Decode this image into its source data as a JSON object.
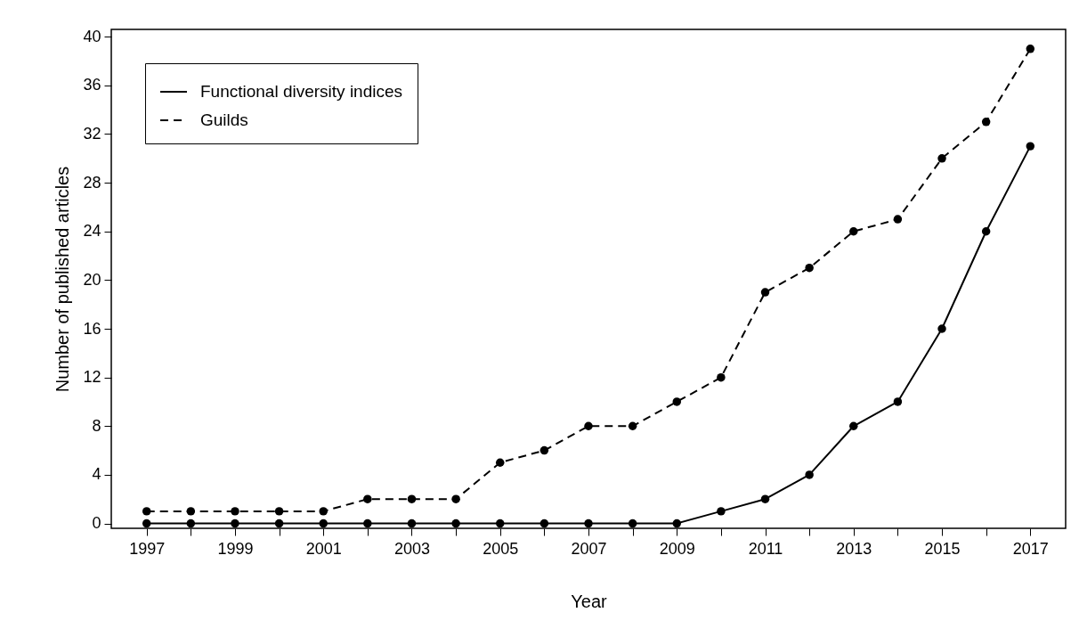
{
  "chart_data": {
    "type": "line",
    "xlabel": "Year",
    "ylabel": "Number of published articles",
    "x": [
      1997,
      1998,
      1999,
      2000,
      2001,
      2002,
      2003,
      2004,
      2005,
      2006,
      2007,
      2008,
      2009,
      2010,
      2011,
      2012,
      2013,
      2014,
      2015,
      2016,
      2017
    ],
    "series": [
      {
        "name": "Functional diversity indices",
        "color": "#000000",
        "line_style": "solid",
        "values": [
          0,
          0,
          0,
          0,
          0,
          0,
          0,
          0,
          0,
          0,
          0,
          0,
          0,
          1,
          2,
          4,
          8,
          10,
          16,
          24,
          31
        ]
      },
      {
        "name": "Guilds",
        "color": "#000000",
        "line_style": "dashed",
        "values": [
          1,
          1,
          1,
          1,
          1,
          2,
          2,
          2,
          5,
          6,
          8,
          8,
          10,
          12,
          19,
          21,
          24,
          25,
          30,
          33,
          39
        ]
      }
    ],
    "xlim": [
      1996.2,
      2017.8
    ],
    "xticks": [
      1997,
      {
        "value": 1998,
        "label": null
      },
      1999,
      {
        "value": 2000,
        "label": null
      },
      2001,
      {
        "value": 2002,
        "label": null
      },
      2003,
      {
        "value": 2004,
        "label": null
      },
      2005,
      {
        "value": 2006,
        "label": null
      },
      2007,
      {
        "value": 2008,
        "label": null
      },
      2009,
      {
        "value": 2010,
        "label": null
      },
      2011,
      {
        "value": 2012,
        "label": null
      },
      2013,
      {
        "value": 2014,
        "label": null
      },
      2015,
      {
        "value": 2016,
        "label": null
      },
      2017
    ],
    "ylim": [
      -0.4,
      40.6
    ],
    "yticks": [
      0,
      4,
      8,
      12,
      16,
      20,
      24,
      28,
      32,
      36,
      40
    ],
    "marker": "circle",
    "grid": false,
    "legend": "top left"
  }
}
